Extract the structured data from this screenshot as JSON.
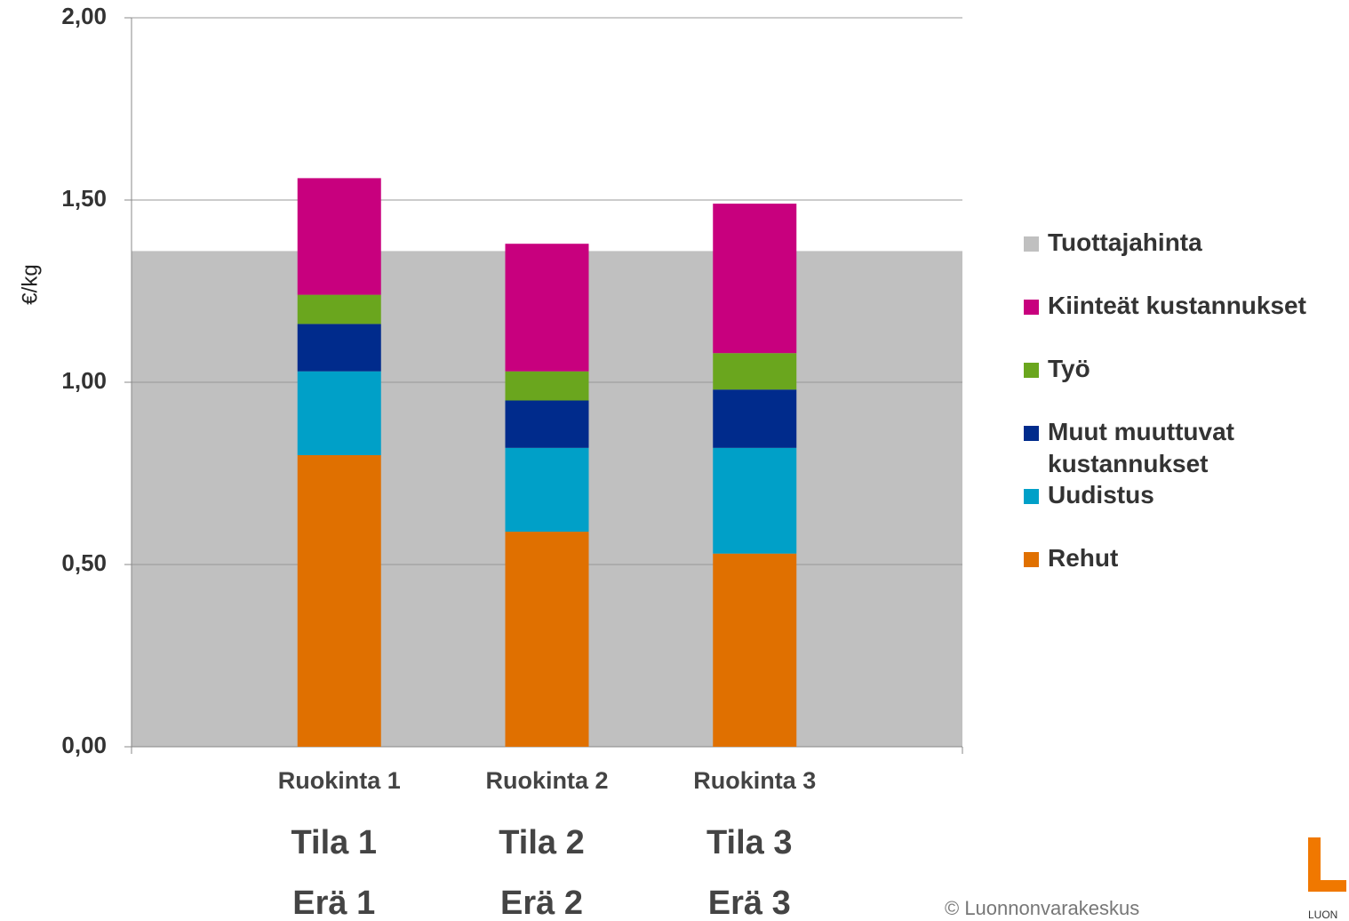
{
  "chart_data": {
    "type": "stacked_bar",
    "y_label": "€/kg",
    "categories": [
      "Ruokinta 1",
      "Ruokinta 2",
      "Ruokinta 3"
    ],
    "category_rows": [
      [
        "Tila 1",
        "Tila 2",
        "Tila 3"
      ],
      [
        "Erä 1",
        "Erä 2",
        "Erä 3"
      ]
    ],
    "series": [
      {
        "name": "Rehut",
        "color": "#e07000",
        "values": [
          0.8,
          0.59,
          0.53
        ]
      },
      {
        "name": "Uudistus",
        "color": "#00a0c8",
        "values": [
          0.23,
          0.23,
          0.29
        ]
      },
      {
        "name": "Muut muuttuvat kustannukset",
        "color": "#002b8c",
        "values": [
          0.13,
          0.13,
          0.16
        ]
      },
      {
        "name": "Työ",
        "color": "#6aa61e",
        "values": [
          0.08,
          0.08,
          0.1
        ]
      },
      {
        "name": "Kiinteät kustannukset",
        "color": "#c8007e",
        "values": [
          0.32,
          0.35,
          0.41
        ]
      }
    ],
    "reference_band": {
      "name": "Tuottajahinta",
      "color": "#c0c0c0",
      "value": 1.36
    },
    "ylim": [
      0,
      2
    ],
    "yticks": [
      {
        "value": 0,
        "label": "0,00"
      },
      {
        "value": 0.5,
        "label": "0,50"
      },
      {
        "value": 1,
        "label": "1,00"
      },
      {
        "value": 1.5,
        "label": "1,50"
      },
      {
        "value": 2,
        "label": "2,00"
      }
    ],
    "grid": true,
    "legend": "right"
  },
  "footer": {
    "copyright": "© Luonnonvarakeskus",
    "logo_text": "LUON"
  }
}
